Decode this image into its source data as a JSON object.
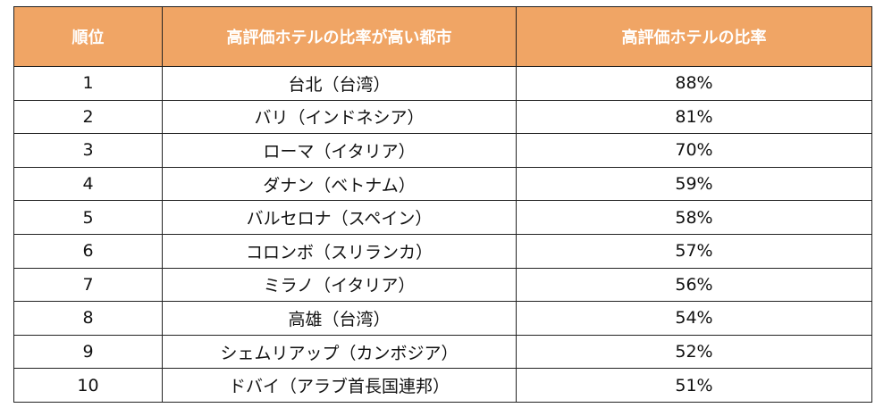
{
  "table": {
    "columns": [
      "順位",
      "高評価ホテルの比率が高い都市",
      "高評価ホテルの比率"
    ],
    "rows": [
      {
        "rank": "1",
        "city": "台北（台湾）",
        "ratio": "88%"
      },
      {
        "rank": "2",
        "city": "バリ（インドネシア）",
        "ratio": "81%"
      },
      {
        "rank": "3",
        "city": "ローマ（イタリア）",
        "ratio": "70%"
      },
      {
        "rank": "4",
        "city": "ダナン（ベトナム）",
        "ratio": "59%"
      },
      {
        "rank": "5",
        "city": "バルセロナ（スペイン）",
        "ratio": "58%"
      },
      {
        "rank": "6",
        "city": "コロンボ（スリランカ）",
        "ratio": "57%"
      },
      {
        "rank": "7",
        "city": "ミラノ（イタリア）",
        "ratio": "56%"
      },
      {
        "rank": "8",
        "city": "高雄（台湾）",
        "ratio": "54%"
      },
      {
        "rank": "9",
        "city": "シェムリアップ（カンボジア）",
        "ratio": "52%"
      },
      {
        "rank": "10",
        "city": "ドバイ（アラブ首長国連邦）",
        "ratio": "51%"
      }
    ]
  },
  "colors": {
    "header_background": "#f0a565",
    "header_text": "#ffffff",
    "border": "#222222"
  }
}
